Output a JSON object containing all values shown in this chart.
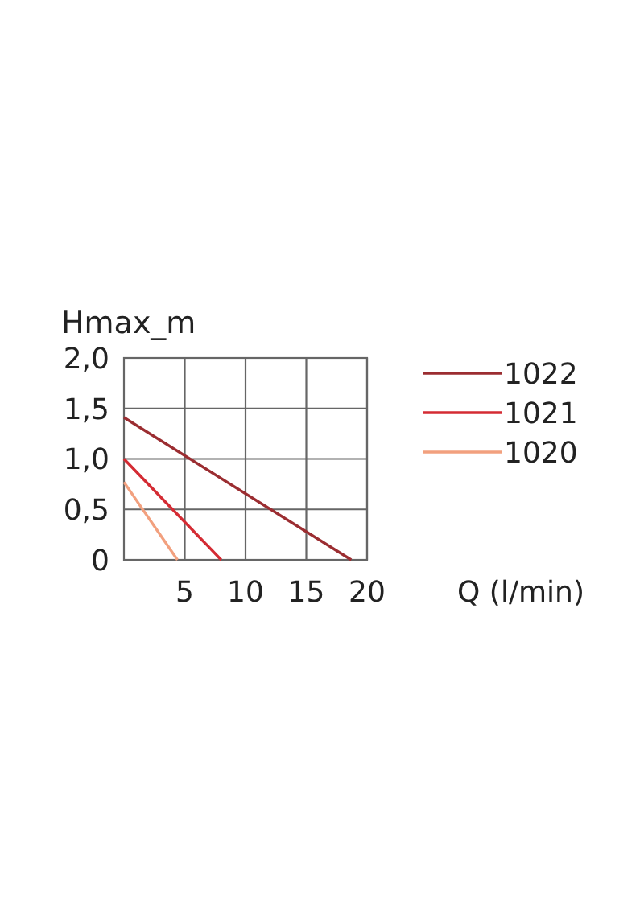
{
  "chart_data": {
    "type": "line",
    "xlabel": "Q (l/min)",
    "ylabel": "Hmax_m",
    "xlim": [
      0,
      20
    ],
    "ylim": [
      0,
      2
    ],
    "xticks": [
      5,
      10,
      15,
      20
    ],
    "yticks": [
      0,
      {
        "value": 0.5,
        "label": "0,5"
      },
      {
        "value": 1,
        "label": "1,0"
      },
      {
        "value": 1.5,
        "label": "1,5"
      },
      {
        "value": 2,
        "label": "2,0"
      }
    ],
    "grid": true,
    "legend": "right",
    "line_style": "solid",
    "series": [
      {
        "name": "1022",
        "color": "#9b2d31",
        "x": [
          0,
          18.7
        ],
        "values": [
          1.41,
          0
        ]
      },
      {
        "name": "1021",
        "color": "#d42b33",
        "x": [
          0,
          8
        ],
        "values": [
          1,
          0
        ]
      },
      {
        "name": "1020",
        "color": "#f2a07e",
        "x": [
          0,
          4.4
        ],
        "values": [
          0.77,
          0
        ]
      }
    ]
  }
}
